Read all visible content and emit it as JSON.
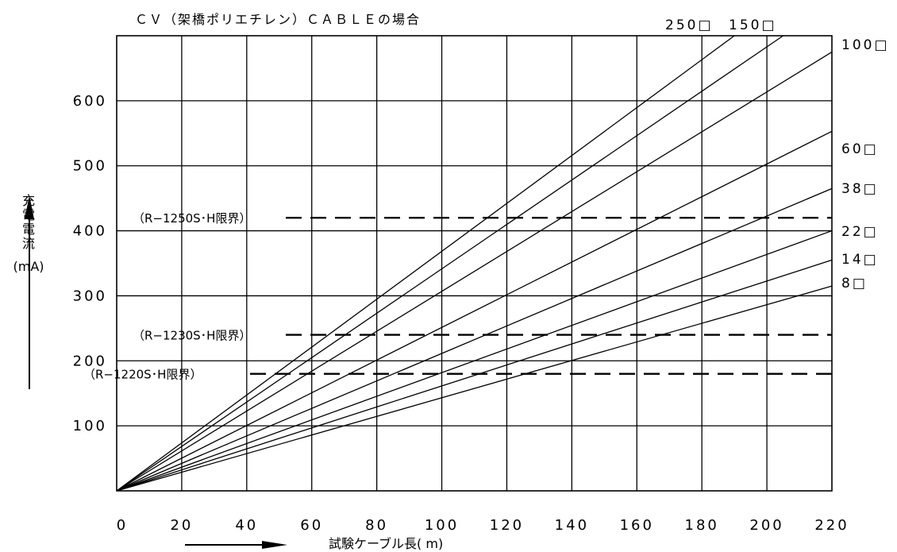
{
  "chart_data": {
    "type": "line",
    "title": "ＣＶ（架橋ポリエチレン）ＣＡＢＬＥの場合",
    "xlabel": "試験ケーブル長( m)",
    "ylabel": [
      "充",
      "電",
      "電",
      "流",
      "(mA)"
    ],
    "x_ticks": [
      "0",
      "20",
      "40",
      "60",
      "80",
      "100",
      "120",
      "140",
      "160",
      "180",
      "200",
      "220"
    ],
    "y_ticks": [
      "100",
      "200",
      "300",
      "400",
      "500",
      "600"
    ],
    "xlim": [
      0,
      220
    ],
    "ylim": [
      0,
      700
    ],
    "grid": true,
    "series": [
      {
        "name": "250□",
        "x": [
          0,
          190
        ],
        "y": [
          0,
          700
        ]
      },
      {
        "name": "150□",
        "x": [
          0,
          205
        ],
        "y": [
          0,
          700
        ]
      },
      {
        "name": "100□",
        "x": [
          0,
          220
        ],
        "y": [
          0,
          675
        ]
      },
      {
        "name": "60□",
        "x": [
          0,
          220
        ],
        "y": [
          0,
          553
        ]
      },
      {
        "name": "38□",
        "x": [
          0,
          220
        ],
        "y": [
          0,
          465
        ]
      },
      {
        "name": "22□",
        "x": [
          0,
          220
        ],
        "y": [
          0,
          400
        ]
      },
      {
        "name": "14□",
        "x": [
          0,
          220
        ],
        "y": [
          0,
          355
        ]
      },
      {
        "name": "8□",
        "x": [
          0,
          220
        ],
        "y": [
          0,
          315
        ]
      }
    ],
    "limits": [
      {
        "label": "（R−1250S･H限界）",
        "y": 420
      },
      {
        "label": "（R−1230S･H限界）",
        "y": 240
      },
      {
        "label": "（R−1220S･H限界）",
        "y": 180
      }
    ]
  }
}
